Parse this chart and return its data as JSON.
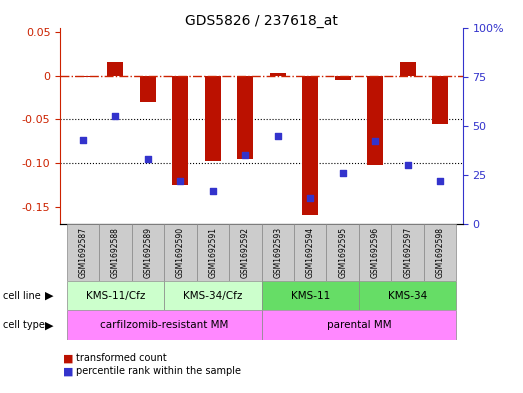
{
  "title": "GDS5826 / 237618_at",
  "samples": [
    "GSM1692587",
    "GSM1692588",
    "GSM1692589",
    "GSM1692590",
    "GSM1692591",
    "GSM1692592",
    "GSM1692593",
    "GSM1692594",
    "GSM1692595",
    "GSM1692596",
    "GSM1692597",
    "GSM1692598"
  ],
  "transformed_count": [
    -0.002,
    0.015,
    -0.03,
    -0.125,
    -0.098,
    -0.095,
    0.003,
    -0.16,
    -0.005,
    -0.102,
    0.015,
    -0.055
  ],
  "percentile_rank": [
    43,
    55,
    33,
    22,
    17,
    35,
    45,
    13,
    26,
    42,
    30,
    22
  ],
  "cell_line_groups": [
    {
      "label": "KMS-11/Cfz",
      "start": 0,
      "end": 3,
      "color": "#ccffcc"
    },
    {
      "label": "KMS-34/Cfz",
      "start": 3,
      "end": 6,
      "color": "#ccffcc"
    },
    {
      "label": "KMS-11",
      "start": 6,
      "end": 9,
      "color": "#66dd66"
    },
    {
      "label": "KMS-34",
      "start": 9,
      "end": 12,
      "color": "#66dd66"
    }
  ],
  "cell_type_groups": [
    {
      "label": "carfilzomib-resistant MM",
      "start": 0,
      "end": 6,
      "color": "#ff88ff"
    },
    {
      "label": "parental MM",
      "start": 6,
      "end": 12,
      "color": "#ff88ff"
    }
  ],
  "bar_color": "#bb1100",
  "dot_color": "#3333cc",
  "ref_line_color": "#cc2200",
  "ylim_left": [
    -0.17,
    0.055
  ],
  "ylim_right": [
    0,
    100
  ],
  "yticks_left": [
    0.05,
    0.0,
    -0.05,
    -0.1,
    -0.15
  ],
  "yticks_right": [
    100,
    75,
    50,
    25,
    0
  ],
  "bar_width": 0.5,
  "sample_box_color": "#cccccc",
  "legend_bar_label": "transformed count",
  "legend_dot_label": "percentile rank within the sample"
}
